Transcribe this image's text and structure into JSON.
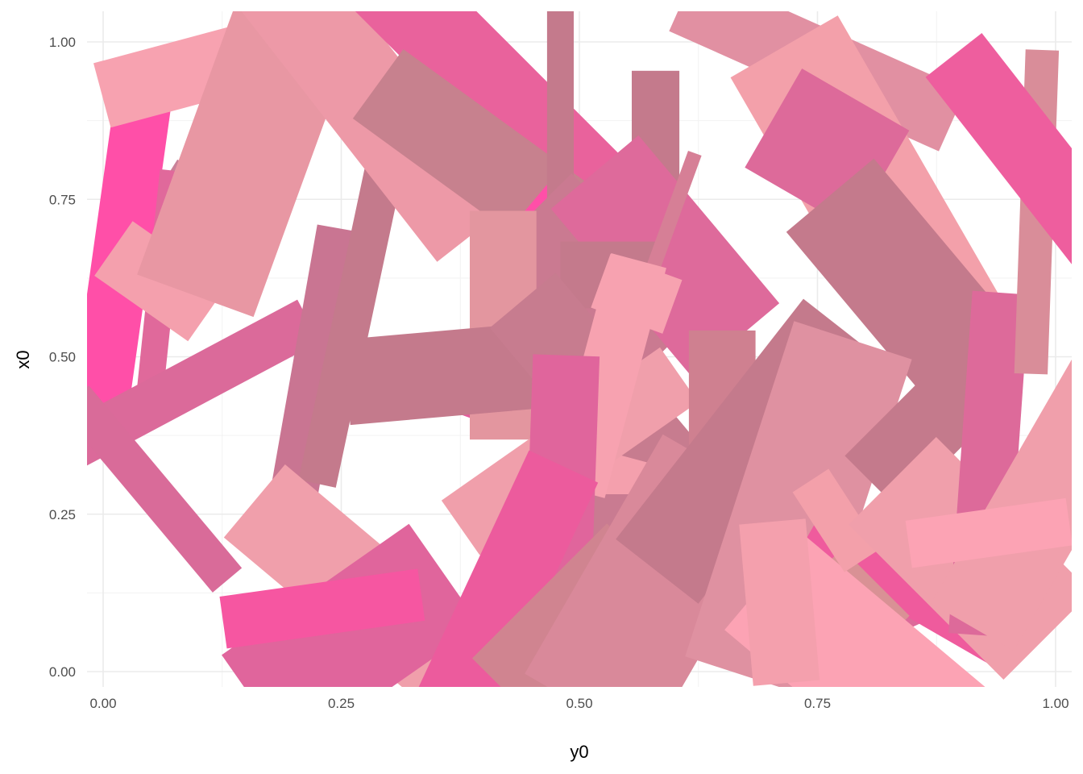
{
  "chart_data": {
    "type": "scatter",
    "geom": "rotated-rectangles",
    "xlabel": "y0",
    "ylabel": "x0",
    "xlim": [
      -0.02,
      1.02
    ],
    "ylim": [
      -0.05,
      1.05
    ],
    "x_ticks": [
      {
        "value": 0.0,
        "label": "0.00"
      },
      {
        "value": 0.25,
        "label": "0.25"
      },
      {
        "value": 0.5,
        "label": "0.50"
      },
      {
        "value": 0.75,
        "label": "0.75"
      },
      {
        "value": 1.0,
        "label": "1.00"
      }
    ],
    "y_ticks": [
      {
        "value": 0.0,
        "label": "0.00"
      },
      {
        "value": 0.25,
        "label": "0.25"
      },
      {
        "value": 0.5,
        "label": "0.50"
      },
      {
        "value": 0.75,
        "label": "0.75"
      },
      {
        "value": 1.0,
        "label": "1.00"
      }
    ],
    "grid": true,
    "legend": "none",
    "background": "#ffffff",
    "rectangles": [
      {
        "x": 0.03,
        "y": 0.68,
        "length": 0.2,
        "thickness": 0.012,
        "angle": 58,
        "color": "#c98299"
      },
      {
        "x": 0.02,
        "y": 0.67,
        "length": 0.36,
        "thickness": 0.06,
        "angle": 82,
        "color": "#ff4fa8"
      },
      {
        "x": 0.06,
        "y": 0.6,
        "length": 0.26,
        "thickness": 0.028,
        "angle": 84,
        "color": "#e0699b"
      },
      {
        "x": 0.06,
        "y": 0.62,
        "length": 0.12,
        "thickness": 0.07,
        "angle": -35,
        "color": "#f4a0ad"
      },
      {
        "x": 0.07,
        "y": 0.44,
        "length": 0.33,
        "thickness": 0.05,
        "angle": 28,
        "color": "#db6a9a"
      },
      {
        "x": 0.05,
        "y": 0.29,
        "length": 0.25,
        "thickness": 0.04,
        "angle": -50,
        "color": "#d96b99"
      },
      {
        "x": 0.11,
        "y": 0.96,
        "length": 0.23,
        "thickness": 0.07,
        "angle": 15,
        "color": "#f7a2b0"
      },
      {
        "x": 0.16,
        "y": 0.86,
        "length": 0.37,
        "thickness": 0.13,
        "angle": 70,
        "color": "#e897a3"
      },
      {
        "x": 0.22,
        "y": 0.45,
        "length": 0.34,
        "thickness": 0.05,
        "angle": 80,
        "color": "#c97592"
      },
      {
        "x": 0.26,
        "y": 0.55,
        "length": 0.34,
        "thickness": 0.04,
        "angle": 78,
        "color": "#c47a8c"
      },
      {
        "x": 0.27,
        "y": 0.93,
        "length": 0.39,
        "thickness": 0.1,
        "angle": -52,
        "color": "#ed99a7"
      },
      {
        "x": 0.27,
        "y": 0.13,
        "length": 0.29,
        "thickness": 0.1,
        "angle": -40,
        "color": "#f09fab"
      },
      {
        "x": 0.26,
        "y": 0.05,
        "length": 0.24,
        "thickness": 0.13,
        "angle": 35,
        "color": "#e0659c"
      },
      {
        "x": 0.23,
        "y": 0.1,
        "length": 0.21,
        "thickness": 0.055,
        "angle": 8,
        "color": "#f656a1"
      },
      {
        "x": 0.42,
        "y": 0.91,
        "length": 0.36,
        "thickness": 0.09,
        "angle": -45,
        "color": "#e9629c"
      },
      {
        "x": 0.41,
        "y": 0.8,
        "length": 0.3,
        "thickness": 0.09,
        "angle": -36,
        "color": "#c7818e"
      },
      {
        "x": 0.5,
        "y": 0.67,
        "length": 0.14,
        "thickness": 0.06,
        "angle": -40,
        "color": "#ff4fa8"
      },
      {
        "x": 0.48,
        "y": 0.85,
        "length": 0.27,
        "thickness": 0.028,
        "angle": 90,
        "color": "#c47a8c"
      },
      {
        "x": 0.52,
        "y": 0.62,
        "length": 0.2,
        "thickness": 0.12,
        "angle": -45,
        "color": "#ca7a91"
      },
      {
        "x": 0.38,
        "y": 0.43,
        "length": 0.1,
        "thickness": 0.03,
        "angle": -20,
        "color": "#e55b9d"
      },
      {
        "x": 0.42,
        "y": 0.55,
        "length": 0.24,
        "thickness": 0.07,
        "angle": 90,
        "color": "#e3969f"
      },
      {
        "x": 0.58,
        "y": 0.75,
        "length": 0.27,
        "thickness": 0.05,
        "angle": 90,
        "color": "#c47a8c"
      },
      {
        "x": 0.59,
        "y": 0.66,
        "length": 0.23,
        "thickness": 0.12,
        "angle": -50,
        "color": "#de6a9b"
      },
      {
        "x": 0.53,
        "y": 0.63,
        "length": 0.1,
        "thickness": 0.07,
        "angle": 0,
        "color": "#c47a8c"
      },
      {
        "x": 0.56,
        "y": 0.6,
        "length": 0.08,
        "thickness": 0.06,
        "angle": -20,
        "color": "#f7a2b0"
      },
      {
        "x": 0.57,
        "y": 0.61,
        "length": 0.3,
        "thickness": 0.015,
        "angle": 70,
        "color": "#d67f96"
      },
      {
        "x": 0.41,
        "y": 0.48,
        "length": 0.31,
        "thickness": 0.09,
        "angle": 5,
        "color": "#c47a8c"
      },
      {
        "x": 0.54,
        "y": 0.41,
        "length": 0.31,
        "thickness": 0.09,
        "angle": -50,
        "color": "#c77c8f"
      },
      {
        "x": 0.54,
        "y": 0.29,
        "length": 0.08,
        "thickness": 0.07,
        "angle": -15,
        "color": "#f4a0ad"
      },
      {
        "x": 0.53,
        "y": 0.1,
        "length": 0.24,
        "thickness": 0.12,
        "angle": 90,
        "color": "#c97b91"
      },
      {
        "x": 0.49,
        "y": 0.35,
        "length": 0.28,
        "thickness": 0.07,
        "angle": 35,
        "color": "#f09fab"
      },
      {
        "x": 0.53,
        "y": 0.47,
        "length": 0.25,
        "thickness": 0.06,
        "angle": 75,
        "color": "#f7a2b0"
      },
      {
        "x": 0.48,
        "y": 0.23,
        "length": 0.36,
        "thickness": 0.07,
        "angle": 88,
        "color": "#e0659c"
      },
      {
        "x": 0.42,
        "y": 0.12,
        "length": 0.3,
        "thickness": 0.08,
        "angle": 65,
        "color": "#ec5b9d"
      },
      {
        "x": 0.49,
        "y": 0.08,
        "length": 0.2,
        "thickness": 0.09,
        "angle": 45,
        "color": "#d08490"
      },
      {
        "x": 0.58,
        "y": 0.13,
        "length": 0.29,
        "thickness": 0.15,
        "angle": 60,
        "color": "#d9899a"
      },
      {
        "x": 0.65,
        "y": 0.36,
        "length": 0.24,
        "thickness": 0.07,
        "angle": 90,
        "color": "#cf8090"
      },
      {
        "x": 0.68,
        "y": 0.35,
        "length": 0.32,
        "thickness": 0.11,
        "angle": 52,
        "color": "#c47a8c"
      },
      {
        "x": 0.75,
        "y": 0.97,
        "length": 0.31,
        "thickness": 0.07,
        "angle": -24,
        "color": "#e190a2"
      },
      {
        "x": 0.8,
        "y": 0.77,
        "length": 0.34,
        "thickness": 0.13,
        "angle": -60,
        "color": "#f3a0aa"
      },
      {
        "x": 0.76,
        "y": 0.83,
        "length": 0.13,
        "thickness": 0.12,
        "angle": -30,
        "color": "#dd6a9a"
      },
      {
        "x": 0.85,
        "y": 0.6,
        "length": 0.27,
        "thickness": 0.12,
        "angle": -50,
        "color": "#c47a8c"
      },
      {
        "x": 0.73,
        "y": 0.26,
        "length": 0.37,
        "thickness": 0.13,
        "angle": 72,
        "color": "#df91a1"
      },
      {
        "x": 0.78,
        "y": 0.08,
        "length": 0.14,
        "thickness": 0.07,
        "angle": 25,
        "color": "#dd6a9a"
      },
      {
        "x": 0.84,
        "y": 0.13,
        "length": 0.23,
        "thickness": 0.045,
        "angle": -30,
        "color": "#ef5b9d"
      },
      {
        "x": 0.79,
        "y": 0.11,
        "length": 0.1,
        "thickness": 0.06,
        "angle": -45,
        "color": "#d99195"
      },
      {
        "x": 0.79,
        "y": 0.02,
        "length": 0.25,
        "thickness": 0.13,
        "angle": -40,
        "color": "#fca3b4"
      },
      {
        "x": 0.71,
        "y": 0.11,
        "length": 0.17,
        "thickness": 0.07,
        "angle": -85,
        "color": "#f4a0ad"
      },
      {
        "x": 0.77,
        "y": 0.24,
        "length": 0.1,
        "thickness": 0.045,
        "angle": -57,
        "color": "#f3a0aa"
      },
      {
        "x": 0.86,
        "y": 0.38,
        "length": 0.15,
        "thickness": 0.08,
        "angle": 45,
        "color": "#c47a8c"
      },
      {
        "x": 0.91,
        "y": 0.18,
        "length": 0.23,
        "thickness": 0.13,
        "angle": -45,
        "color": "#f09fab"
      },
      {
        "x": 0.93,
        "y": 0.33,
        "length": 0.36,
        "thickness": 0.06,
        "angle": 86,
        "color": "#dd6a9a"
      },
      {
        "x": 1.0,
        "y": 0.3,
        "length": 0.35,
        "thickness": 0.1,
        "angle": 60,
        "color": "#f09fab"
      },
      {
        "x": 0.93,
        "y": 0.22,
        "length": 0.17,
        "thickness": 0.05,
        "angle": 8,
        "color": "#fca3b4"
      },
      {
        "x": 0.98,
        "y": 0.73,
        "length": 0.34,
        "thickness": 0.035,
        "angle": 88,
        "color": "#d98d99"
      },
      {
        "x": 0.97,
        "y": 0.83,
        "length": 0.25,
        "thickness": 0.075,
        "angle": -52,
        "color": "#ee5e9e"
      }
    ]
  }
}
